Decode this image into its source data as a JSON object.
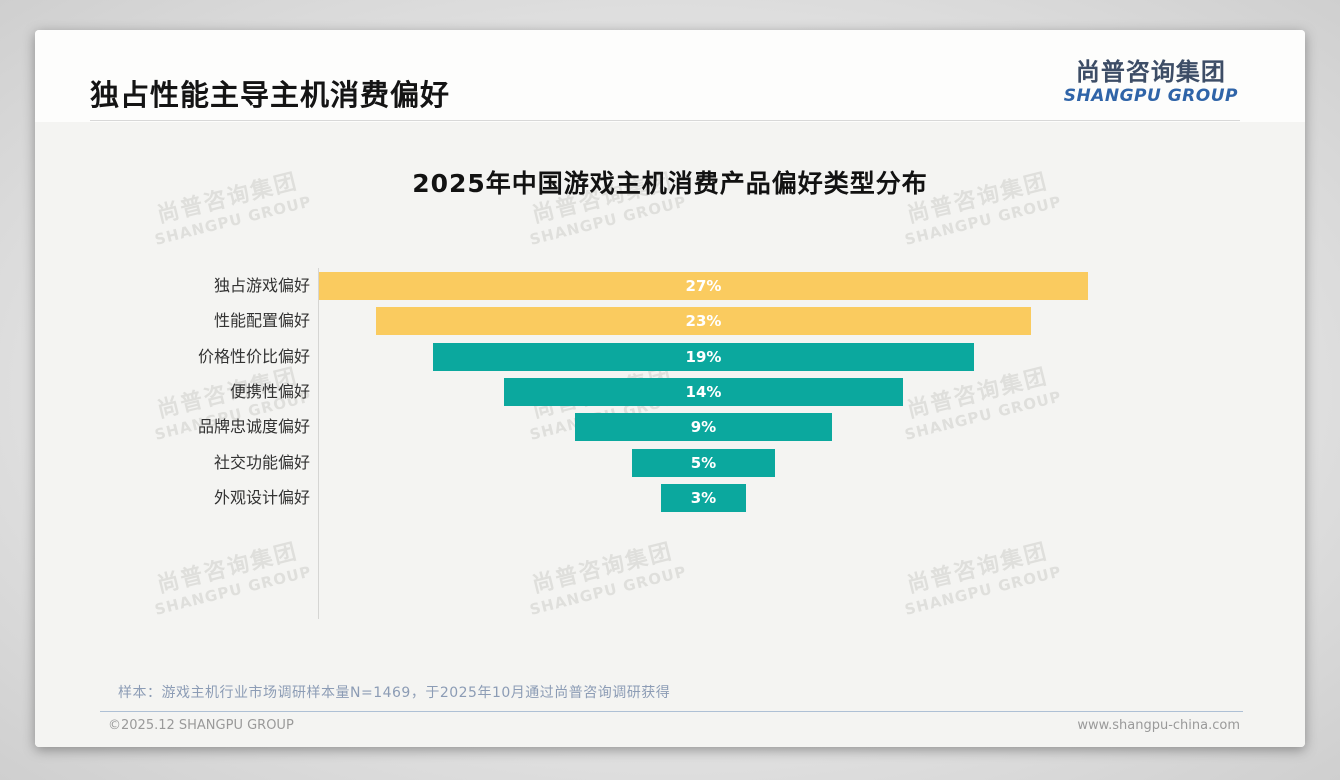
{
  "page": {
    "title": "独占性能主导主机消费偏好",
    "logo": {
      "cn": "尚普咨询集团",
      "en": "SHANGPU GROUP"
    },
    "watermark": {
      "cn": "尚普咨询集团",
      "en": "SHANGPU GROUP"
    },
    "footnote": "样本：游戏主机行业市场调研样本量N=1469，于2025年10月通过尚普咨询调研获得",
    "footer": {
      "left": "©2025.12 SHANGPU GROUP",
      "right": "www.shangpu-china.com"
    }
  },
  "chart_data": {
    "type": "bar",
    "subtype": "centered-funnel-horizontal-bars",
    "title": "2025年中国游戏主机消费产品偏好类型分布",
    "categories": [
      "独占游戏偏好",
      "性能配置偏好",
      "价格性价比偏好",
      "便携性偏好",
      "品牌忠诚度偏好",
      "社交功能偏好",
      "外观设计偏好"
    ],
    "values": [
      27,
      23,
      19,
      14,
      9,
      5,
      3
    ],
    "labels": [
      "27%",
      "23%",
      "19%",
      "14%",
      "9%",
      "5%",
      "3%"
    ],
    "unit": "%",
    "xlim": [
      0,
      27
    ],
    "grid": false,
    "legend": null,
    "bar_colors": [
      "#facb5f",
      "#facb5f",
      "#0ba89e",
      "#0ba89e",
      "#0ba89e",
      "#0ba89e",
      "#0ba89e"
    ]
  },
  "colors": {
    "accent_yellow": "#facb5f",
    "accent_teal": "#0ba89e",
    "logo_cn": "#3d4d66",
    "logo_en": "#2f64a8",
    "footnote_text": "#8c9cb5",
    "footer_text": "#9a9a9a"
  }
}
